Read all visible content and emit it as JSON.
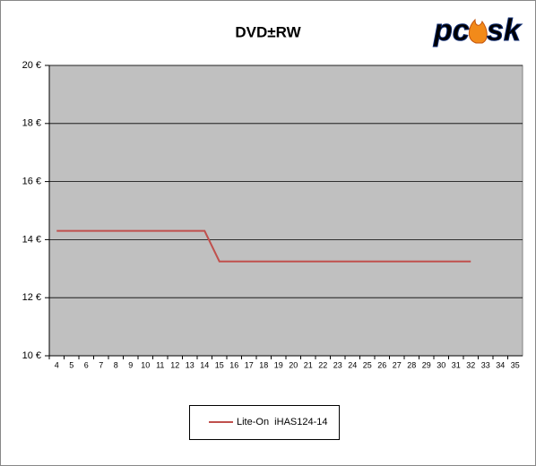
{
  "chart_data": {
    "type": "line",
    "title": "DVD±RW",
    "logo": [
      "pc",
      "sk"
    ],
    "categories": [
      "4",
      "5",
      "6",
      "7",
      "8",
      "9",
      "10",
      "11",
      "12",
      "13",
      "14",
      "15",
      "16",
      "17",
      "18",
      "19",
      "20",
      "21",
      "22",
      "23",
      "24",
      "25",
      "26",
      "27",
      "28",
      "29",
      "30",
      "31",
      "32",
      "33",
      "34",
      "35"
    ],
    "series": [
      {
        "name": "Lite-On  iHAS124-14",
        "color": "#c0504d",
        "values": [
          14.3,
          14.3,
          14.3,
          14.3,
          14.3,
          14.3,
          14.3,
          14.3,
          14.3,
          14.3,
          14.3,
          13.25,
          13.25,
          13.25,
          13.25,
          13.25,
          13.25,
          13.25,
          13.25,
          13.25,
          13.25,
          13.25,
          13.25,
          13.25,
          13.25,
          13.25,
          13.25,
          13.25,
          13.25,
          null,
          null,
          null
        ]
      }
    ],
    "ylim": [
      10,
      20
    ],
    "yticks": [
      {
        "value": 10,
        "label": "10 €"
      },
      {
        "value": 12,
        "label": "12 €"
      },
      {
        "value": 14,
        "label": "14 €"
      },
      {
        "value": 16,
        "label": "16 €"
      },
      {
        "value": 18,
        "label": "18 €"
      },
      {
        "value": 20,
        "label": "20 €"
      }
    ],
    "grid": true,
    "legend": "bottom"
  }
}
